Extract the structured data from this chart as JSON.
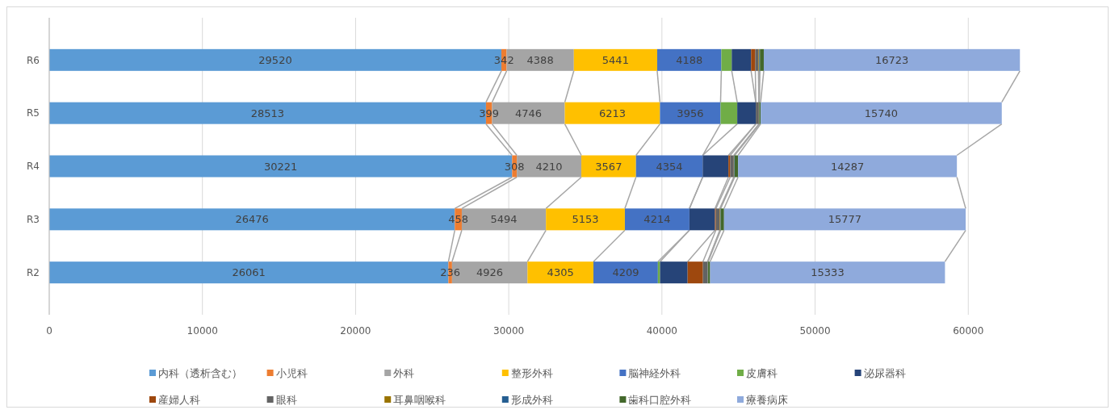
{
  "chart_data": {
    "type": "bar",
    "orientation": "horizontal",
    "stacked": true,
    "categories": [
      "R6",
      "R5",
      "R4",
      "R3",
      "R2"
    ],
    "series": [
      {
        "name": "内科（透析含む）",
        "color": "#5b9bd5",
        "values": [
          29520,
          28513,
          30221,
          26476,
          26061
        ],
        "value_labels": [
          "29520",
          "28513",
          "30221",
          "26476",
          "26061"
        ]
      },
      {
        "name": "小児科",
        "color": "#ed7d31",
        "values": [
          342,
          399,
          308,
          458,
          236
        ],
        "value_labels": [
          "342",
          "399",
          "308",
          "458",
          "236"
        ]
      },
      {
        "name": "外科",
        "color": "#a5a5a5",
        "values": [
          4388,
          4746,
          4210,
          5494,
          4926
        ],
        "value_labels": [
          "4388",
          "4746",
          "4210",
          "5494",
          "4926"
        ]
      },
      {
        "name": "整形外科",
        "color": "#ffc000",
        "values": [
          5441,
          6213,
          3567,
          5153,
          4305
        ],
        "value_labels": [
          "5441",
          "6213",
          "3567",
          "5153",
          "4305"
        ]
      },
      {
        "name": "脳神経外科",
        "color": "#4472c4",
        "values": [
          4188,
          3956,
          4354,
          4214,
          4209
        ],
        "value_labels": [
          "4188",
          "3956",
          "4354",
          "4214",
          "4209"
        ]
      },
      {
        "name": "皮膚科",
        "color": "#70ad47",
        "values": [
          680,
          1090,
          null,
          null,
          140
        ]
      },
      {
        "name": "泌尿器科",
        "color": "#264478",
        "values": [
          1260,
          1210,
          1680,
          1670,
          1800
        ]
      },
      {
        "name": "産婦人科",
        "color": "#9e480e",
        "values": [
          280,
          null,
          120,
          60,
          1000
        ]
      },
      {
        "name": "眼科",
        "color": "#636363",
        "values": [
          200,
          200,
          230,
          250,
          300
        ]
      },
      {
        "name": "耳鼻咽喉科",
        "color": "#997300",
        "values": [
          50,
          20,
          30,
          30,
          20
        ]
      },
      {
        "name": "形成外科",
        "color": "#255e91",
        "values": [
          50,
          20,
          30,
          30,
          20
        ]
      },
      {
        "name": "歯科口腔外科",
        "color": "#43682b",
        "values": [
          250,
          80,
          220,
          220,
          130
        ]
      },
      {
        "name": "療養病床",
        "color": "#8faadc",
        "values": [
          16723,
          15740,
          14287,
          15777,
          15333
        ],
        "value_labels": [
          "16723",
          "15740",
          "14287",
          "15777",
          "15333"
        ]
      }
    ],
    "xlim": [
      0,
      69000
    ],
    "xticks": [
      0,
      10000,
      20000,
      30000,
      40000,
      50000,
      60000
    ],
    "grid": "x",
    "legend": "bottom"
  }
}
